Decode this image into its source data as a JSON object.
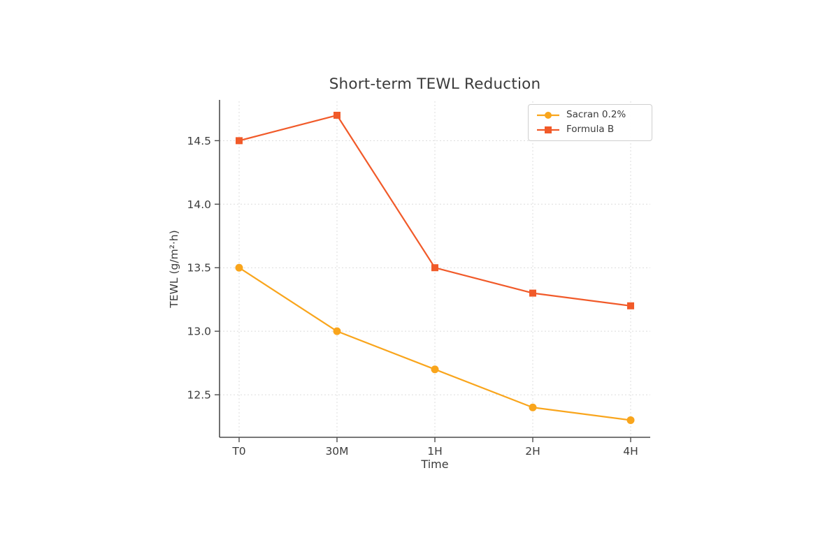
{
  "chart_data": {
    "type": "line",
    "title": "Short-term TEWL Reduction",
    "xlabel": "Time",
    "ylabel": "TEWL (g/m²·h)",
    "categories": [
      "T0",
      "30M",
      "1H",
      "2H",
      "4H"
    ],
    "series": [
      {
        "name": "Sacran 0.2%",
        "marker": "circle",
        "color": "#F9A51C",
        "values": [
          13.5,
          13.0,
          12.7,
          12.4,
          12.3
        ]
      },
      {
        "name": "Formula B",
        "marker": "square",
        "color": "#F15A29",
        "values": [
          14.5,
          14.7,
          13.5,
          13.3,
          13.2
        ]
      }
    ],
    "yticks": [
      "12.5",
      "13.0",
      "13.5",
      "14.0",
      "14.5"
    ],
    "ytick_values": [
      12.5,
      13.0,
      13.5,
      14.0,
      14.5
    ],
    "ylim": [
      12.165,
      14.81
    ],
    "grid": {
      "horizontal": true,
      "vertical": true,
      "style": "dashed",
      "color": "#dcdcdc"
    },
    "legend_position": "upper right",
    "axis_color": "#4c4c4c",
    "text_color": "#3d3d3d",
    "background_color": "#ffffff"
  }
}
